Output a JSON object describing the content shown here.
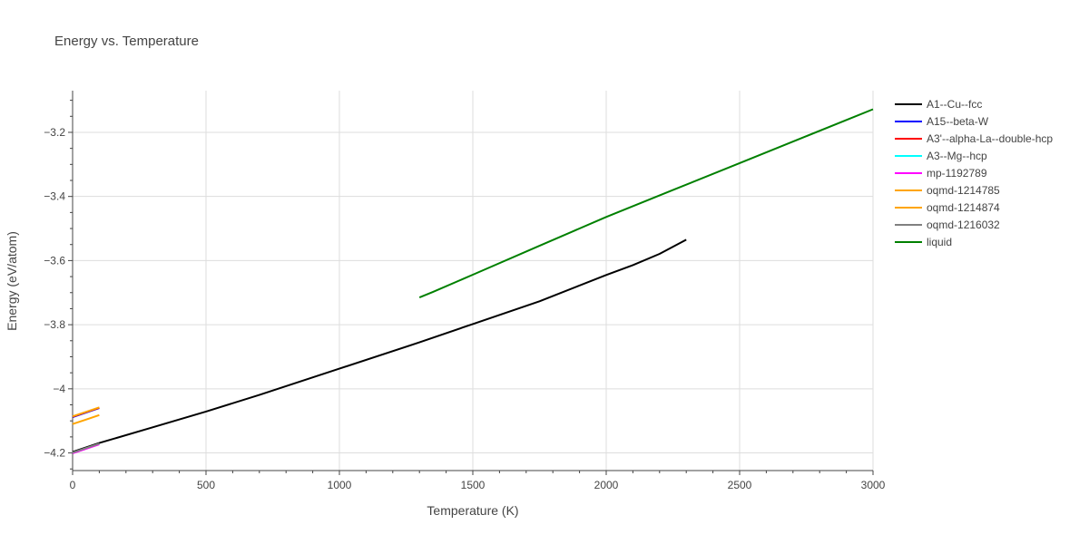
{
  "chart_data": {
    "type": "line",
    "title": "Energy vs. Temperature",
    "xlabel": "Temperature (K)",
    "ylabel": "Energy (eV/atom)",
    "xlim": [
      0,
      3000
    ],
    "ylim": [
      -4.255,
      -3.07
    ],
    "x_ticks": [
      0,
      500,
      1000,
      1500,
      2000,
      2500,
      3000
    ],
    "x_tick_labels": [
      "0",
      "500",
      "1000",
      "1500",
      "2000",
      "2500",
      "3000"
    ],
    "y_ticks": [
      -4.2,
      -4.0,
      -3.8,
      -3.6,
      -3.4,
      -3.2
    ],
    "y_tick_labels": [
      "−4.2",
      "−4",
      "−3.8",
      "−3.6",
      "−3.4",
      "−3.2"
    ],
    "grid": true,
    "legend_position": "right",
    "series": [
      {
        "name": "A1--Cu--fcc",
        "color": "#000000",
        "x": [
          0,
          100,
          300,
          500,
          700,
          1000,
          1300,
          1500,
          1750,
          2000,
          2100,
          2200,
          2300
        ],
        "y": [
          -4.197,
          -4.169,
          -4.12,
          -4.071,
          -4.019,
          -3.937,
          -3.855,
          -3.798,
          -3.727,
          -3.645,
          -3.614,
          -3.579,
          -3.535
        ]
      },
      {
        "name": "A15--beta-W",
        "color": "#0000ff",
        "x": [
          0,
          50,
          100
        ],
        "y": [
          -4.088,
          -4.074,
          -4.06
        ]
      },
      {
        "name": "A3'--alpha-La--double-hcp",
        "color": "#ff0000",
        "x": [
          0,
          50,
          100
        ],
        "y": [
          -4.087,
          -4.073,
          -4.059
        ]
      },
      {
        "name": "A3--Mg--hcp",
        "color": "#00ffff",
        "x": [
          0,
          50,
          100
        ],
        "y": [
          -4.2,
          -4.186,
          -4.172
        ]
      },
      {
        "name": "mp-1192789",
        "color": "#ff00ff",
        "x": [
          0,
          50,
          100
        ],
        "y": [
          -4.201,
          -4.187,
          -4.173
        ]
      },
      {
        "name": "oqmd-1214785",
        "color": "#ffa500",
        "x": [
          0,
          50,
          100
        ],
        "y": [
          -4.11,
          -4.096,
          -4.082
        ]
      },
      {
        "name": "oqmd-1214874",
        "color": "#ffa500",
        "x": [
          0,
          50,
          100
        ],
        "y": [
          -4.086,
          -4.072,
          -4.058
        ]
      },
      {
        "name": "oqmd-1216032",
        "color": "#808080",
        "x": [
          0,
          50,
          100
        ],
        "y": [
          -4.199,
          -4.185,
          -4.171
        ]
      },
      {
        "name": "liquid",
        "color": "#008000",
        "x": [
          1300,
          1350,
          1500,
          1750,
          2000,
          2250,
          2500,
          2750,
          3000
        ],
        "y": [
          -3.715,
          -3.698,
          -3.644,
          -3.554,
          -3.464,
          -3.38,
          -3.296,
          -3.212,
          -3.128
        ]
      }
    ]
  }
}
